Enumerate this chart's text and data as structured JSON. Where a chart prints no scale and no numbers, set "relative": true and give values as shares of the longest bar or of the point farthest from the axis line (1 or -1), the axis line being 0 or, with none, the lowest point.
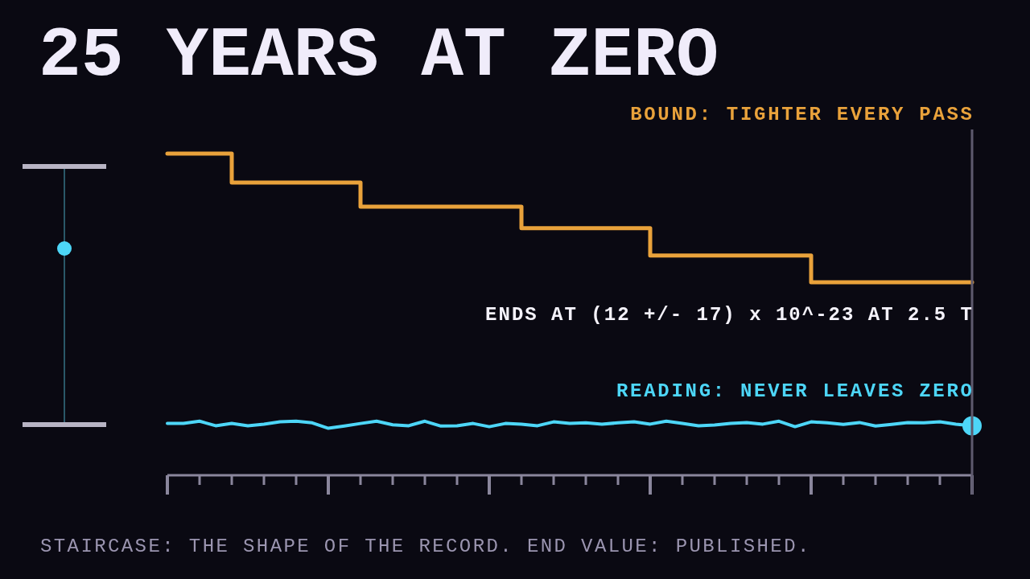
{
  "chart_data": {
    "type": "line",
    "title": "25 YEARS AT ZERO",
    "relative": true,
    "legend": false,
    "categories": [
      null,
      null,
      null,
      null,
      null,
      null,
      null,
      null,
      null,
      null,
      null,
      null,
      null,
      null,
      null,
      null,
      null,
      null,
      null,
      null,
      null,
      null,
      null,
      null,
      null,
      null,
      null,
      null,
      null,
      null,
      null,
      null,
      null,
      null,
      null,
      null,
      null,
      null,
      null,
      null,
      null,
      null,
      null,
      null,
      null,
      null,
      null,
      null,
      null,
      null,
      null
    ],
    "series": [
      {
        "name": "BOUND: TIGHTER EVERY PASS",
        "type": "step",
        "color": "#e9a23b",
        "values": [
          1,
          1,
          1,
          1,
          0.91,
          0.91,
          0.91,
          0.91,
          0.91,
          0.91,
          0.91,
          0.91,
          0.835,
          0.835,
          0.835,
          0.835,
          0.835,
          0.835,
          0.835,
          0.835,
          0.835,
          0.835,
          0.768,
          0.768,
          0.768,
          0.768,
          0.768,
          0.768,
          0.768,
          0.768,
          0.683,
          0.683,
          0.683,
          0.683,
          0.683,
          0.683,
          0.683,
          0.683,
          0.683,
          0.683,
          0.6,
          0.6,
          0.6,
          0.6,
          0.6,
          0.6,
          0.6,
          0.6,
          0.6,
          0.6,
          0.6
        ]
      },
      {
        "name": "READING: NEVER LEAVES ZERO",
        "color": "#4dd6f7",
        "values": [
          0.161,
          0.161,
          0.168,
          0.154,
          0.161,
          0.154,
          0.159,
          0.166,
          0.168,
          0.163,
          0.146,
          0.153,
          0.161,
          0.168,
          0.157,
          0.154,
          0.168,
          0.153,
          0.154,
          0.161,
          0.151,
          0.161,
          0.159,
          0.154,
          0.166,
          0.161,
          0.163,
          0.159,
          0.163,
          0.166,
          0.159,
          0.168,
          0.161,
          0.154,
          0.156,
          0.161,
          0.164,
          0.159,
          0.168,
          0.151,
          0.166,
          0.163,
          0.158,
          0.164,
          0.153,
          0.158,
          0.164,
          0.163,
          0.166,
          0.159,
          0.154
        ]
      }
    ],
    "annotations": [
      "ENDS AT (12 +/- 17) x 10^-23 AT 2.5 T",
      "STAIRCASE: THE SHAPE OF THE RECORD. END VALUE: PUBLISHED."
    ]
  }
}
